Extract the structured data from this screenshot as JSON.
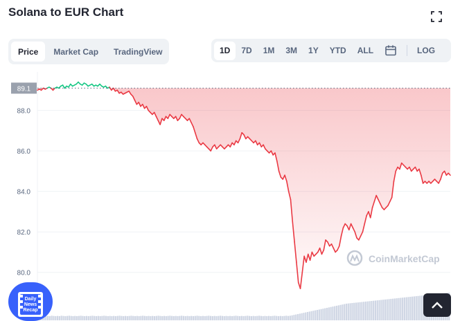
{
  "header": {
    "title": "Solana to EUR Chart"
  },
  "icons": {
    "fullscreen": "fullscreen-icon",
    "calendar": "calendar-icon",
    "scroll_top": "chevron-up-icon",
    "news": "daily-news-recap-icon",
    "watermark": "coinmarketcap-logo-icon"
  },
  "view_tabs": [
    {
      "label": "Price",
      "active": true
    },
    {
      "label": "Market Cap",
      "active": false
    },
    {
      "label": "TradingView",
      "active": false
    }
  ],
  "range_tabs": [
    {
      "label": "1D",
      "active": true
    },
    {
      "label": "7D",
      "active": false
    },
    {
      "label": "1M",
      "active": false
    },
    {
      "label": "3M",
      "active": false
    },
    {
      "label": "1Y",
      "active": false
    },
    {
      "label": "YTD",
      "active": false
    },
    {
      "label": "ALL",
      "active": false
    }
  ],
  "log_label": "LOG",
  "watermark": "CoinMarketCap",
  "news_badge": {
    "line1": "Daily",
    "line2": "News",
    "line3": "Recap"
  },
  "colors": {
    "up": "#16c784",
    "down": "#ea3943",
    "reference": "#9aa1ad",
    "volume": "#cfd6e4",
    "accent": "#3861fb"
  },
  "chart_data": {
    "type": "line",
    "reference_value": 89.1,
    "reference_label": "89.1",
    "ylim": [
      79.0,
      89.9
    ],
    "yticks": [
      80.0,
      82.0,
      84.0,
      86.0,
      88.0
    ],
    "ytick_labels": [
      "80.0",
      "82.0",
      "84.0",
      "86.0",
      "88.0"
    ],
    "grid": true,
    "xlabel": "",
    "ylabel": "",
    "series": [
      {
        "values": [
          89.0,
          89.05,
          89.0,
          89.1,
          89.05,
          89.1,
          89.15,
          89.1,
          89.0,
          89.1,
          89.15,
          89.1,
          89.2,
          89.25,
          89.1,
          89.2,
          89.15,
          89.3,
          89.2,
          89.25,
          89.3,
          89.4,
          89.3,
          89.25,
          89.35,
          89.3,
          89.2,
          89.25,
          89.3,
          89.2,
          89.25,
          89.2,
          89.3,
          89.2,
          89.15,
          89.2,
          89.1,
          89.15,
          89.0,
          89.1,
          88.95,
          89.0,
          88.85,
          88.9,
          88.8,
          88.85,
          88.9,
          88.95,
          88.8,
          88.7,
          88.5,
          88.3,
          88.4,
          88.2,
          88.3,
          88.1,
          88.2,
          88.0,
          87.9,
          87.8,
          87.9,
          87.7,
          87.5,
          87.3,
          87.6,
          87.5,
          87.7,
          87.6,
          87.8,
          87.7,
          87.6,
          87.7,
          87.5,
          87.6,
          87.8,
          87.7,
          87.6,
          87.5,
          87.6,
          87.4,
          87.2,
          86.9,
          86.6,
          86.4,
          86.3,
          86.4,
          86.3,
          86.2,
          86.1,
          86.0,
          86.2,
          86.3,
          86.1,
          86.2,
          86.3,
          86.2,
          86.1,
          86.2,
          86.3,
          86.2,
          86.4,
          86.3,
          86.5,
          86.4,
          86.6,
          86.9,
          86.8,
          86.6,
          86.7,
          86.6,
          86.5,
          86.4,
          86.5,
          86.3,
          86.4,
          86.2,
          86.3,
          86.1,
          86.0,
          85.9,
          86.0,
          85.8,
          85.9,
          85.5,
          85.0,
          84.7,
          84.6,
          84.8,
          84.5,
          84.0,
          83.6,
          82.5,
          81.5,
          80.5,
          79.5,
          79.2,
          80.0,
          80.8,
          80.5,
          80.9,
          80.6,
          81.0,
          80.8,
          80.9,
          81.0,
          81.2,
          80.9,
          81.1,
          81.6,
          81.5,
          81.3,
          81.4,
          81.2,
          81.0,
          81.1,
          81.3,
          81.8,
          82.2,
          82.4,
          82.3,
          82.1,
          82.4,
          82.2,
          82.0,
          81.7,
          81.6,
          81.8,
          82.0,
          82.4,
          82.8,
          83.0,
          82.7,
          83.2,
          83.5,
          83.8,
          83.6,
          83.4,
          83.2,
          83.1,
          83.2,
          83.3,
          83.5,
          83.7,
          84.5,
          85.0,
          85.2,
          85.1,
          85.4,
          85.3,
          85.2,
          85.1,
          85.2,
          85.0,
          85.1,
          85.2,
          85.0,
          85.1,
          84.8,
          84.4,
          84.5,
          84.4,
          84.5,
          84.4,
          84.5,
          84.6,
          84.5,
          84.4,
          84.6,
          84.9,
          85.0,
          84.8,
          84.9,
          84.8
        ]
      }
    ],
    "volume": [
      2.0,
      2.1,
      2.0,
      2.1,
      2.2,
      2.1,
      2.0,
      2.2,
      2.1,
      2.0,
      2.1,
      2.0,
      2.2,
      2.1,
      2.0,
      2.1,
      2.2,
      2.1,
      2.0,
      2.1,
      2.0,
      2.1,
      2.2,
      2.1,
      2.0,
      2.1,
      2.0,
      2.1,
      2.2,
      2.1,
      2.0,
      2.1,
      2.0,
      2.1,
      2.2,
      2.1,
      2.0,
      2.1,
      2.0,
      2.1,
      2.0,
      2.1,
      2.2,
      2.1,
      2.0,
      2.1,
      2.0,
      2.1,
      2.2,
      2.1,
      2.0,
      2.1,
      2.0,
      2.1,
      2.2,
      2.1,
      2.0,
      2.1,
      2.0,
      2.1,
      2.0,
      2.1,
      2.2,
      2.1,
      2.0,
      2.1,
      2.0,
      2.1,
      2.2,
      2.1,
      2.0,
      2.1,
      2.0,
      2.1,
      2.2,
      2.1,
      2.0,
      2.1,
      2.0,
      2.1,
      2.0,
      2.1,
      2.2,
      2.1,
      2.0,
      2.1,
      2.0,
      2.1,
      2.2,
      2.1,
      2.0,
      2.1,
      2.0,
      2.1,
      2.2,
      2.1,
      2.0,
      2.1,
      2.0,
      2.1,
      2.0,
      2.1,
      2.2,
      2.1,
      2.0,
      2.1,
      2.0,
      2.1,
      2.2,
      2.1,
      2.0,
      2.1,
      2.0,
      2.1,
      2.2,
      2.1,
      2.0,
      2.1,
      2.0,
      2.1,
      2.0,
      2.1,
      2.2,
      2.1,
      2.0,
      2.1,
      2.0,
      2.1,
      2.2,
      2.1,
      2.2,
      2.4,
      2.6,
      2.8,
      3.0,
      3.2,
      3.4,
      3.6,
      3.8,
      4.0,
      4.2,
      4.4,
      4.6,
      4.8,
      5.0,
      5.2,
      5.4,
      5.6,
      5.8,
      6.0,
      6.2,
      6.4,
      6.6,
      6.8,
      7.0,
      7.2,
      7.4,
      7.6,
      7.8,
      8.0,
      8.1,
      8.2,
      8.3,
      8.4,
      8.5,
      8.6,
      8.7,
      8.8,
      8.9,
      9.0,
      9.1,
      9.2,
      9.3,
      9.4,
      9.5,
      9.6,
      9.7,
      9.8,
      9.9,
      10.0,
      10.1,
      10.2,
      10.3,
      10.4,
      10.5,
      10.6,
      10.7,
      10.8,
      10.9,
      11.0,
      11.1,
      11.2,
      11.3,
      11.4,
      11.5,
      11.6,
      11.7,
      11.8,
      11.9,
      12.0,
      12.1,
      12.2,
      12.3,
      12.4,
      12.5,
      12.6,
      12.7,
      12.8,
      12.9,
      13.0,
      13.1,
      13.2,
      13.3
    ]
  }
}
